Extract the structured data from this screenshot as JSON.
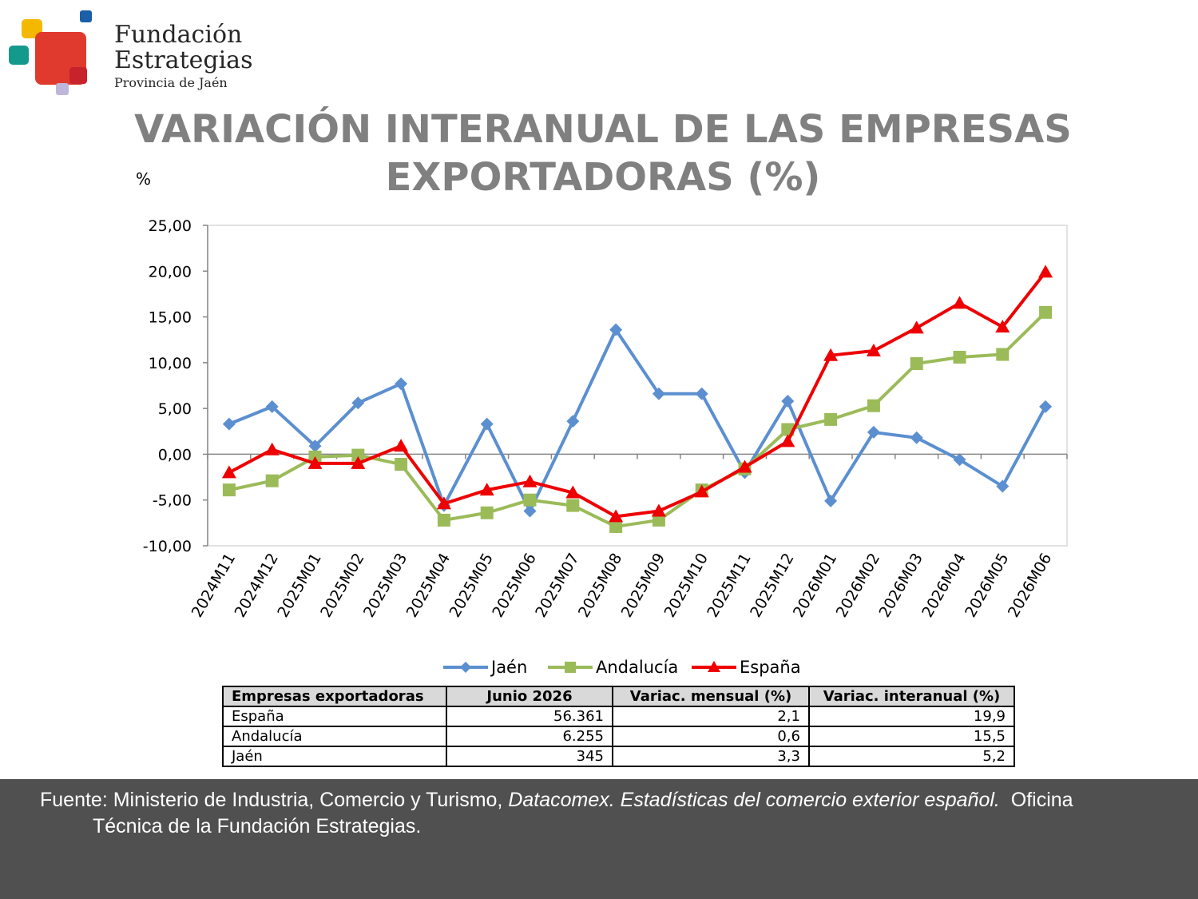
{
  "logo": {
    "line1": "Fundación",
    "line2": "Estrategias",
    "line3": "Provincia de Jaén"
  },
  "title": "VARIACIÓN INTERANUAL DE LAS EMPRESAS EXPORTADORAS (%)",
  "chart_data": {
    "type": "line",
    "title": "VARIACIÓN INTERANUAL DE LAS EMPRESAS EXPORTADORAS (%)",
    "ylabel": "%",
    "xlabel": "",
    "ylim": [
      -10,
      25
    ],
    "yticks": [
      "25,00",
      "20,00",
      "15,00",
      "10,00",
      "5,00",
      "0,00",
      "-5,00",
      "-10,00"
    ],
    "ytick_values": [
      25,
      20,
      15,
      10,
      5,
      0,
      -5,
      -10
    ],
    "categories": [
      "2024M11",
      "2024M12",
      "2025M01",
      "2025M02",
      "2025M03",
      "2025M04",
      "2025M05",
      "2025M06",
      "2025M07",
      "2025M08",
      "2025M09",
      "2025M10",
      "2025M11",
      "2025M12",
      "2026M01",
      "2026M02",
      "2026M03",
      "2026M04",
      "2026M05",
      "2026M06"
    ],
    "grid": false,
    "legend_position": "bottom",
    "series": [
      {
        "name": "Jaén",
        "color": "#5b8fd0",
        "marker": "diamond",
        "values": [
          3.3,
          5.2,
          0.9,
          5.6,
          7.7,
          -5.6,
          3.3,
          -6.2,
          3.6,
          13.6,
          6.6,
          6.6,
          -2.0,
          5.8,
          -5.1,
          2.4,
          1.8,
          -0.6,
          -3.5,
          5.2
        ]
      },
      {
        "name": "Andalucía",
        "color": "#9bbb59",
        "marker": "square",
        "values": [
          -3.9,
          -2.9,
          -0.3,
          -0.1,
          -1.1,
          -7.2,
          -6.4,
          -5.0,
          -5.6,
          -7.9,
          -7.2,
          -3.9,
          -1.6,
          2.7,
          3.8,
          5.3,
          9.9,
          10.6,
          10.9,
          15.5
        ]
      },
      {
        "name": "España",
        "color": "#ee0000",
        "marker": "triangle",
        "values": [
          -2.0,
          0.5,
          -1.0,
          -1.0,
          0.9,
          -5.4,
          -3.9,
          -3.0,
          -4.2,
          -6.8,
          -6.2,
          -4.1,
          -1.4,
          1.4,
          10.8,
          11.3,
          13.8,
          16.5,
          13.9,
          19.9
        ]
      }
    ]
  },
  "table": {
    "headers": [
      "Empresas exportadoras",
      "Junio 2026",
      "Variac. mensual (%)",
      "Variac. interanual (%)"
    ],
    "rows": [
      [
        "España",
        "56.361",
        "2,1",
        "19,9"
      ],
      [
        "Andalucía",
        "6.255",
        "0,6",
        "15,5"
      ],
      [
        "Jaén",
        "345",
        "3,3",
        "5,2"
      ]
    ]
  },
  "footer": {
    "prefix": "Fuente: Ministerio de Industria, Comercio y Turismo, ",
    "italic": "Datacomex. Estadísticas del comercio exterior español.",
    "suffix_line1": "  Oficina",
    "line2": "Técnica de la Fundación Estrategias."
  },
  "colors": {
    "title": "#808080",
    "footer_bg": "#505050"
  }
}
